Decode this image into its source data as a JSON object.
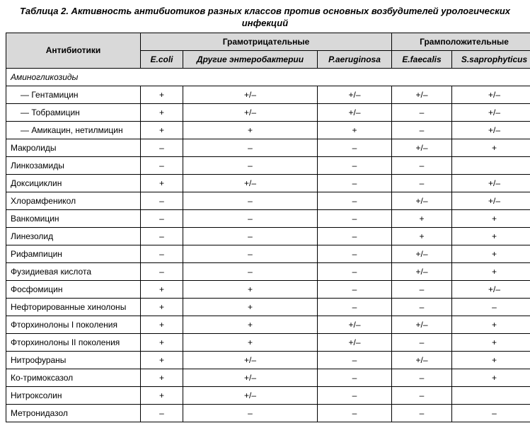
{
  "title_line1": "Таблица 2. Активность антибиотиков разных классов против основных возбудителей урологических",
  "title_line2": "инфекций",
  "header": {
    "antibiotics": "Антибиотики",
    "gram_neg": "Грамотрицательные",
    "gram_pos": "Грамположительные",
    "cols": [
      "E.coli",
      "Другие энтеробактерии",
      "P.aeruginosa",
      "E.faecalis",
      "S.saprophyticus"
    ]
  },
  "rows": [
    {
      "type": "section",
      "label": "Аминогликозиды"
    },
    {
      "type": "indent",
      "label": "— Гентамицин",
      "v": [
        "+",
        "+/–",
        "+/–",
        "+/–",
        "+/–"
      ]
    },
    {
      "type": "indent",
      "label": "— Тобрамицин",
      "v": [
        "+",
        "+/–",
        "+/–",
        "–",
        "+/–"
      ]
    },
    {
      "type": "indent",
      "label": "— Амикацин, нетилмицин",
      "v": [
        "+",
        "+",
        "+",
        "–",
        "+/–"
      ]
    },
    {
      "type": "row",
      "label": "Макролиды",
      "v": [
        "–",
        "–",
        "–",
        "+/–",
        "+"
      ]
    },
    {
      "type": "row",
      "label": "Линкозамиды",
      "v": [
        "–",
        "–",
        "–",
        "–",
        ""
      ]
    },
    {
      "type": "row",
      "label": "Доксициклин",
      "v": [
        "+",
        "+/–",
        "–",
        "–",
        "+/–"
      ]
    },
    {
      "type": "row",
      "label": "Хлорамфеникол",
      "v": [
        "–",
        "–",
        "–",
        "+/–",
        "+/–"
      ]
    },
    {
      "type": "row",
      "label": "Ванкомицин",
      "v": [
        "–",
        "–",
        "–",
        "+",
        "+"
      ]
    },
    {
      "type": "row",
      "label": "Линезолид",
      "v": [
        "–",
        "–",
        "–",
        "+",
        "+"
      ]
    },
    {
      "type": "row",
      "label": "Рифампицин",
      "v": [
        "–",
        "–",
        "–",
        "+/–",
        "+"
      ]
    },
    {
      "type": "row",
      "label": "Фузидиевая кислота",
      "v": [
        "–",
        "–",
        "–",
        "+/–",
        "+"
      ]
    },
    {
      "type": "row",
      "label": "Фосфомицин",
      "v": [
        "+",
        "+",
        "–",
        "–",
        "+/–"
      ]
    },
    {
      "type": "row",
      "label": "Нефторированные хинолоны",
      "v": [
        "+",
        "+",
        "–",
        "–",
        "–"
      ]
    },
    {
      "type": "row",
      "label": "Фторхинолоны I поколения",
      "v": [
        "+",
        "+",
        "+/–",
        "+/–",
        "+"
      ]
    },
    {
      "type": "row",
      "label": "Фторхинолоны II поколения",
      "v": [
        "+",
        "+",
        "+/–",
        "–",
        "+"
      ]
    },
    {
      "type": "row",
      "label": "Нитрофураны",
      "v": [
        "+",
        "+/–",
        "–",
        "+/–",
        "+"
      ]
    },
    {
      "type": "row",
      "label": "Ко-тримоксазол",
      "v": [
        "+",
        "+/–",
        "–",
        "–",
        "+"
      ]
    },
    {
      "type": "row",
      "label": "Нитроксолин",
      "v": [
        "+",
        "+/–",
        "–",
        "–",
        ""
      ]
    },
    {
      "type": "row",
      "label": "Метронидазол",
      "v": [
        "–",
        "–",
        "–",
        "–",
        "–"
      ]
    }
  ]
}
